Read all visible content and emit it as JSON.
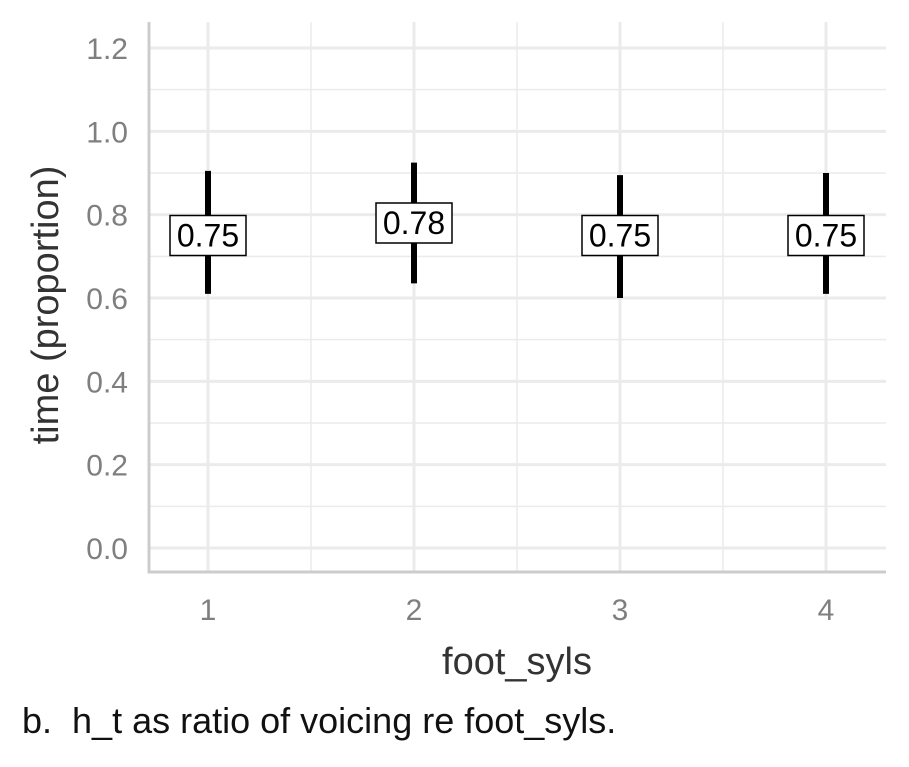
{
  "chart_data": {
    "type": "errorbar",
    "categories": [
      "1",
      "2",
      "3",
      "4"
    ],
    "values": [
      0.75,
      0.78,
      0.75,
      0.75
    ],
    "labels": [
      "0.75",
      "0.78",
      "0.75",
      "0.75"
    ],
    "lower": [
      0.61,
      0.635,
      0.6,
      0.61
    ],
    "upper": [
      0.905,
      0.925,
      0.895,
      0.9
    ],
    "xlabel": "foot_syls",
    "ylabel": "time (proportion)",
    "ylim": [
      0,
      1.2
    ],
    "yticks": [
      "0.0",
      "0.2",
      "0.4",
      "0.6",
      "0.8",
      "1.0",
      "1.2"
    ],
    "grid": true
  },
  "caption": "b.  h_t as ratio of voicing re foot_syls.",
  "colors": {
    "grid": "#ebebeb",
    "axis": "#cccccc",
    "bar": "#000000",
    "tick_text": "#7f7f7f"
  }
}
